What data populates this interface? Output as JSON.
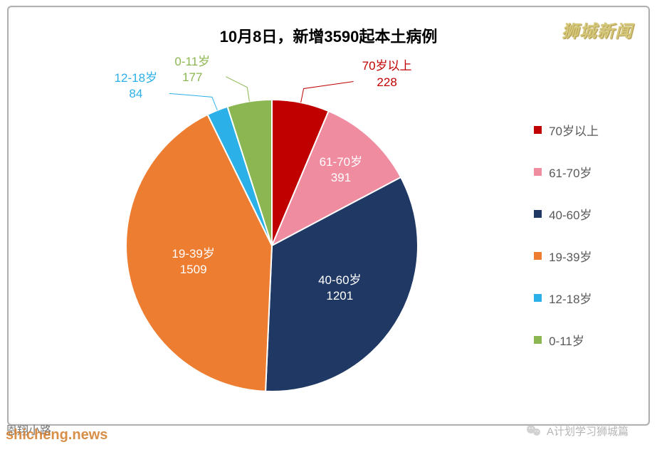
{
  "chart": {
    "type": "pie",
    "title": "10月8日，新增3590起本土病例",
    "title_fontsize": 22,
    "title_color": "#000000",
    "background_color": "#ffffff",
    "border_color": "#b0b0b0",
    "slices": [
      {
        "label": "70岁以上",
        "value": 228,
        "color": "#c00000",
        "label_color": "#c00000"
      },
      {
        "label": "61-70岁",
        "value": 391,
        "color": "#f08ca0",
        "label_color": "#f08ca0"
      },
      {
        "label": "40-60岁",
        "value": 1201,
        "color": "#1f3864",
        "label_color": "#1f3864"
      },
      {
        "label": "19-39岁",
        "value": 1509,
        "color": "#ed7d31",
        "label_color": "#ed7d31"
      },
      {
        "label": "12-18岁",
        "value": 84,
        "color": "#2bb0e8",
        "label_color": "#2bb0e8"
      },
      {
        "label": "0-11岁",
        "value": 177,
        "color": "#8cb652",
        "label_color": "#8cb652"
      }
    ],
    "start_angle_deg": -90,
    "label_fontsize": 17,
    "slice_border_color": "#ffffff",
    "slice_border_width": 2,
    "legend": {
      "fontsize": 17,
      "swatch_size": 11,
      "text_color": "#595959",
      "position": "right"
    }
  },
  "watermarks": {
    "top_right": "狮城新闻",
    "top_right_color": "#d4c878",
    "bottom_left_1": "恩翔小路",
    "bottom_left_2": "shicheng.news",
    "bottom_right": "A计划学习狮城篇"
  }
}
